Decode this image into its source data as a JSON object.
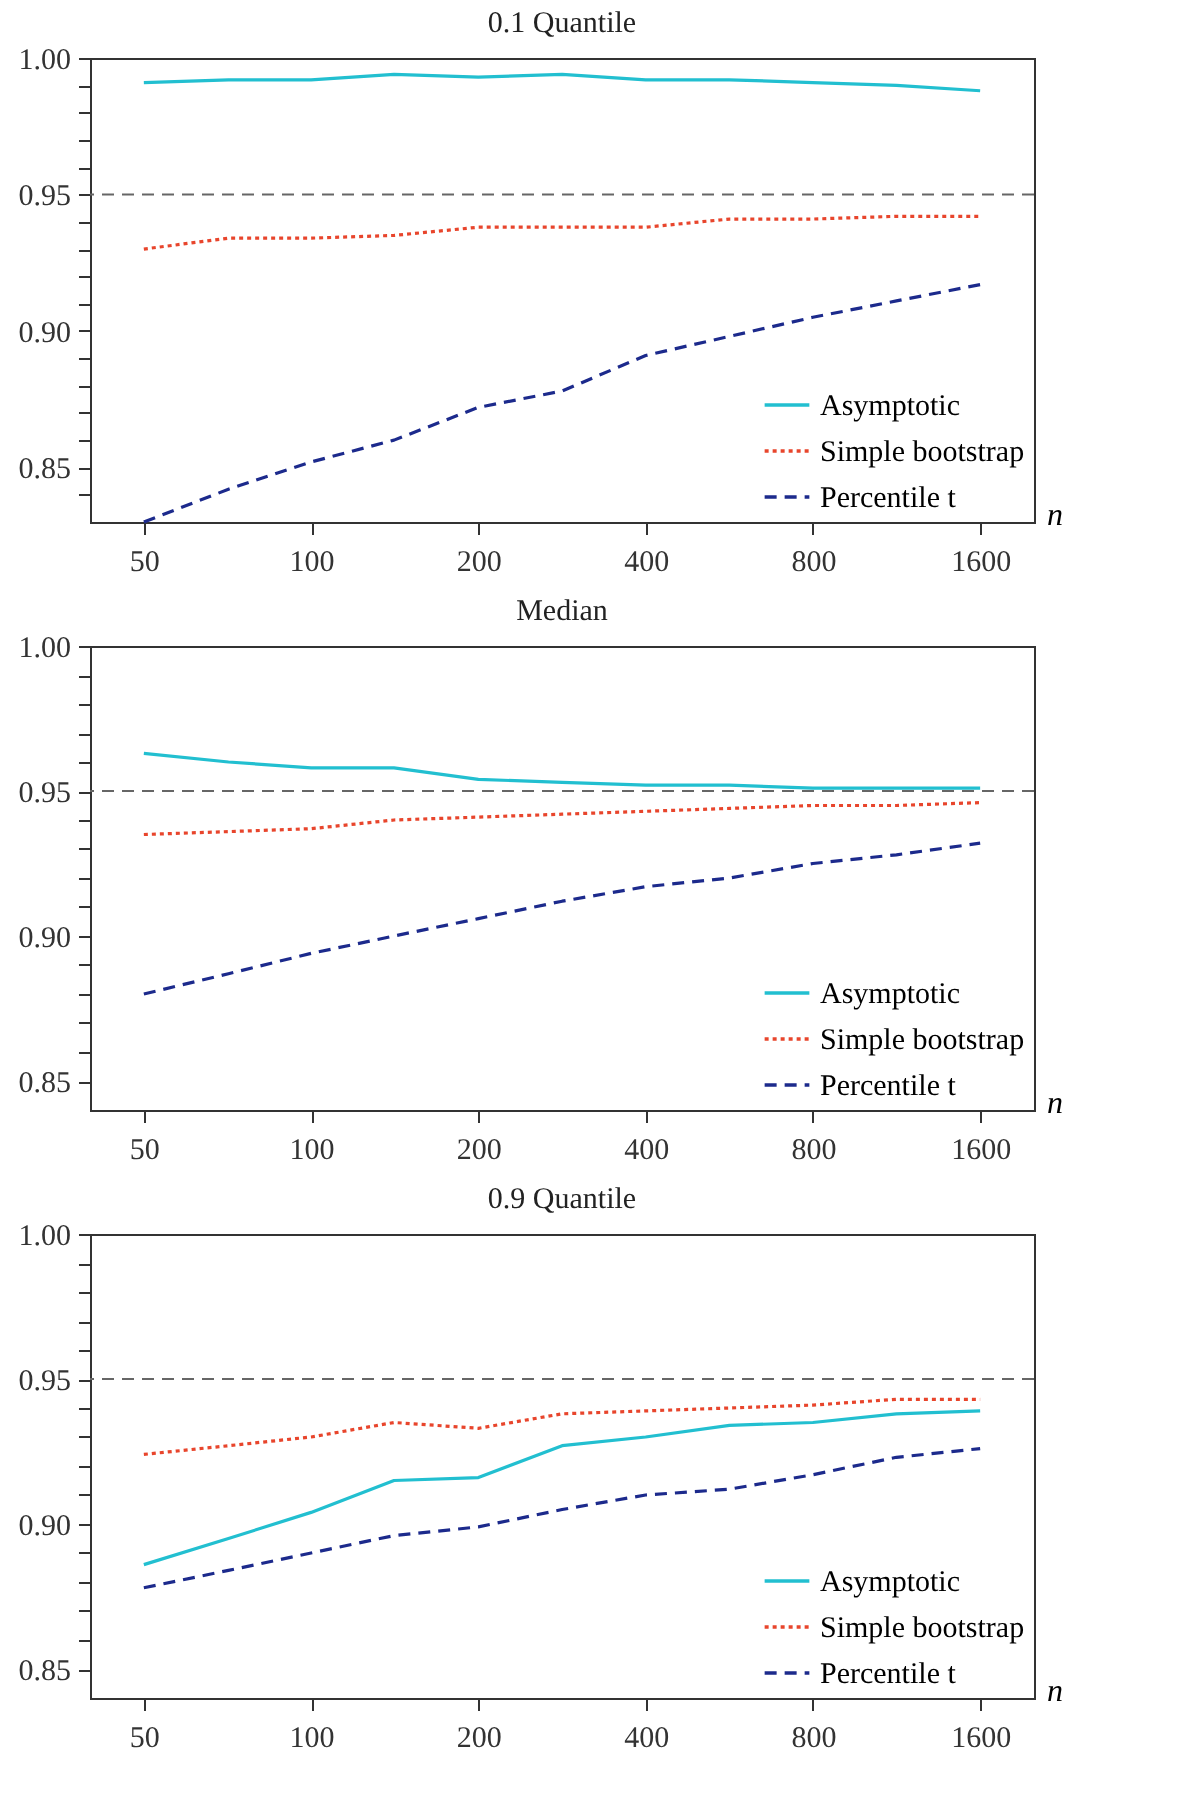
{
  "chart_data": [
    {
      "type": "line",
      "title": "0.1 Quantile",
      "xlabel": "n",
      "log": "x",
      "legend": "bottom right",
      "grid": false,
      "x": [
        50,
        71,
        100,
        141,
        200,
        283,
        400,
        566,
        800,
        1131,
        1600
      ],
      "xlim": [
        40,
        2000
      ],
      "xticks": [
        50,
        100,
        200,
        400,
        800,
        1600
      ],
      "ylim": [
        0.83,
        1.0
      ],
      "yticks": [
        {
          "value": 0.84,
          "label": null
        },
        {
          "value": 0.85,
          "label": "0.85"
        },
        {
          "value": 0.86,
          "label": null
        },
        {
          "value": 0.87,
          "label": null
        },
        {
          "value": 0.88,
          "label": null
        },
        {
          "value": 0.89,
          "label": null
        },
        {
          "value": 0.9,
          "label": "0.90"
        },
        {
          "value": 0.91,
          "label": null
        },
        {
          "value": 0.92,
          "label": null
        },
        {
          "value": 0.93,
          "label": null
        },
        {
          "value": 0.94,
          "label": null
        },
        {
          "value": 0.95,
          "label": "0.95"
        },
        {
          "value": 0.96,
          "label": null
        },
        {
          "value": 0.97,
          "label": null
        },
        {
          "value": 0.98,
          "label": null
        },
        {
          "value": 0.99,
          "label": null
        },
        {
          "value": 1.0,
          "label": "1.00"
        }
      ],
      "ref_lines": [
        {
          "axis": "y",
          "value": 0.95,
          "color": "#666666",
          "line_style": "dashed"
        }
      ],
      "series": [
        {
          "name": "Asymptotic",
          "color": "#22bfd0",
          "line_style": "solid",
          "values": [
            0.991,
            0.992,
            0.992,
            0.994,
            0.993,
            0.994,
            0.992,
            0.992,
            0.991,
            0.99,
            0.988
          ]
        },
        {
          "name": "Simple bootstrap",
          "color": "#e8452c",
          "line_style": "dotted",
          "values": [
            0.93,
            0.934,
            0.934,
            0.935,
            0.938,
            0.938,
            0.938,
            0.941,
            0.941,
            0.942,
            0.942
          ]
        },
        {
          "name": "Percentile t",
          "color": "#1c2a8c",
          "line_style": "dashed",
          "values": [
            0.83,
            0.842,
            0.852,
            0.86,
            0.872,
            0.878,
            0.891,
            0.898,
            0.905,
            0.911,
            0.917
          ]
        }
      ]
    },
    {
      "type": "line",
      "title": "Median",
      "xlabel": "n",
      "log": "x",
      "legend": "bottom right",
      "grid": false,
      "x": [
        50,
        71,
        100,
        141,
        200,
        283,
        400,
        566,
        800,
        1131,
        1600
      ],
      "xlim": [
        40,
        2000
      ],
      "xticks": [
        50,
        100,
        200,
        400,
        800,
        1600
      ],
      "ylim": [
        0.84,
        1.0
      ],
      "yticks": [
        {
          "value": 0.85,
          "label": "0.85"
        },
        {
          "value": 0.86,
          "label": null
        },
        {
          "value": 0.87,
          "label": null
        },
        {
          "value": 0.88,
          "label": null
        },
        {
          "value": 0.89,
          "label": null
        },
        {
          "value": 0.9,
          "label": "0.90"
        },
        {
          "value": 0.91,
          "label": null
        },
        {
          "value": 0.92,
          "label": null
        },
        {
          "value": 0.93,
          "label": null
        },
        {
          "value": 0.94,
          "label": null
        },
        {
          "value": 0.95,
          "label": "0.95"
        },
        {
          "value": 0.96,
          "label": null
        },
        {
          "value": 0.97,
          "label": null
        },
        {
          "value": 0.98,
          "label": null
        },
        {
          "value": 0.99,
          "label": null
        },
        {
          "value": 1.0,
          "label": "1.00"
        }
      ],
      "ref_lines": [
        {
          "axis": "y",
          "value": 0.95,
          "color": "#666666",
          "line_style": "dashed"
        }
      ],
      "series": [
        {
          "name": "Asymptotic",
          "color": "#22bfd0",
          "line_style": "solid",
          "values": [
            0.963,
            0.96,
            0.958,
            0.958,
            0.954,
            0.953,
            0.952,
            0.952,
            0.951,
            0.951,
            0.951
          ]
        },
        {
          "name": "Simple bootstrap",
          "color": "#e8452c",
          "line_style": "dotted",
          "values": [
            0.935,
            0.936,
            0.937,
            0.94,
            0.941,
            0.942,
            0.943,
            0.944,
            0.945,
            0.945,
            0.946
          ]
        },
        {
          "name": "Percentile t",
          "color": "#1c2a8c",
          "line_style": "dashed",
          "values": [
            0.88,
            0.887,
            0.894,
            0.9,
            0.906,
            0.912,
            0.917,
            0.92,
            0.925,
            0.928,
            0.932
          ]
        }
      ]
    },
    {
      "type": "line",
      "title": "0.9 Quantile",
      "xlabel": "n",
      "log": "x",
      "legend": "bottom right",
      "grid": false,
      "x": [
        50,
        71,
        100,
        141,
        200,
        283,
        400,
        566,
        800,
        1131,
        1600
      ],
      "xlim": [
        40,
        2000
      ],
      "xticks": [
        50,
        100,
        200,
        400,
        800,
        1600
      ],
      "ylim": [
        0.84,
        1.0
      ],
      "yticks": [
        {
          "value": 0.85,
          "label": "0.85"
        },
        {
          "value": 0.86,
          "label": null
        },
        {
          "value": 0.87,
          "label": null
        },
        {
          "value": 0.88,
          "label": null
        },
        {
          "value": 0.89,
          "label": null
        },
        {
          "value": 0.9,
          "label": "0.90"
        },
        {
          "value": 0.91,
          "label": null
        },
        {
          "value": 0.92,
          "label": null
        },
        {
          "value": 0.93,
          "label": null
        },
        {
          "value": 0.94,
          "label": null
        },
        {
          "value": 0.95,
          "label": "0.95"
        },
        {
          "value": 0.96,
          "label": null
        },
        {
          "value": 0.97,
          "label": null
        },
        {
          "value": 0.98,
          "label": null
        },
        {
          "value": 0.99,
          "label": null
        },
        {
          "value": 1.0,
          "label": "1.00"
        }
      ],
      "ref_lines": [
        {
          "axis": "y",
          "value": 0.95,
          "color": "#666666",
          "line_style": "dashed"
        }
      ],
      "series": [
        {
          "name": "Asymptotic",
          "color": "#22bfd0",
          "line_style": "solid",
          "values": [
            0.886,
            0.895,
            0.904,
            0.915,
            0.916,
            0.927,
            0.93,
            0.934,
            0.935,
            0.938,
            0.939
          ]
        },
        {
          "name": "Simple bootstrap",
          "color": "#e8452c",
          "line_style": "dotted",
          "values": [
            0.924,
            0.927,
            0.93,
            0.935,
            0.933,
            0.938,
            0.939,
            0.94,
            0.941,
            0.943,
            0.943
          ]
        },
        {
          "name": "Percentile t",
          "color": "#1c2a8c",
          "line_style": "dashed",
          "values": [
            0.878,
            0.884,
            0.89,
            0.896,
            0.899,
            0.905,
            0.91,
            0.912,
            0.917,
            0.923,
            0.926
          ]
        }
      ]
    }
  ]
}
